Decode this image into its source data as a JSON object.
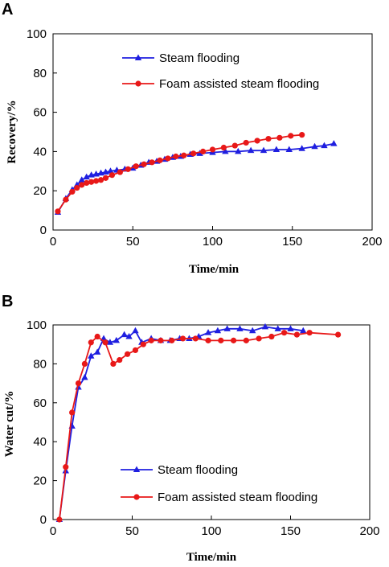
{
  "colors": {
    "steam": "#1f1fe0",
    "foam": "#e81818",
    "axis": "#000000"
  },
  "chart_data": [
    {
      "panel": "A",
      "type": "line",
      "xlabel": "Time/min",
      "ylabel": "Recovery/%",
      "xlim": [
        0,
        200
      ],
      "ylim": [
        0,
        100
      ],
      "xticks": [
        0,
        50,
        100,
        150,
        200
      ],
      "yticks": [
        0,
        20,
        40,
        60,
        80,
        100
      ],
      "legend": {
        "position": "top-center"
      },
      "series": [
        {
          "name": "Steam flooding",
          "color": "#1f1fe0",
          "marker": "triangle",
          "x": [
            3,
            8,
            12,
            15,
            18,
            21,
            24,
            27,
            30,
            33,
            36,
            40,
            45,
            50,
            55,
            60,
            65,
            70,
            75,
            80,
            86,
            92,
            100,
            108,
            116,
            124,
            132,
            140,
            148,
            156,
            164,
            170,
            176
          ],
          "y": [
            9,
            16,
            20.5,
            23,
            25.5,
            27,
            28,
            28.5,
            29,
            29.5,
            30,
            30.5,
            31,
            31.5,
            33,
            34.5,
            35,
            36,
            37,
            37.5,
            38.5,
            39,
            39.5,
            40,
            40,
            40.5,
            40.5,
            41,
            41,
            41.5,
            42.5,
            43,
            44
          ]
        },
        {
          "name": "Foam assisted steam flooding",
          "color": "#e81818",
          "marker": "circle",
          "x": [
            3,
            8,
            12,
            15,
            18,
            21,
            24,
            27,
            30,
            33,
            37,
            42,
            47,
            52,
            57,
            62,
            67,
            72,
            77,
            82,
            88,
            94,
            100,
            107,
            114,
            121,
            128,
            135,
            142,
            149,
            156
          ],
          "y": [
            9.5,
            15.5,
            19.5,
            21.5,
            23,
            24,
            24.5,
            25,
            25.5,
            26.5,
            28,
            29.5,
            31,
            32.5,
            33.5,
            34.5,
            35.5,
            36.5,
            37.5,
            38,
            39,
            40,
            41,
            42,
            43,
            44.5,
            45.5,
            46.5,
            47,
            48,
            48.5
          ]
        }
      ]
    },
    {
      "panel": "B",
      "type": "line",
      "xlabel": "Time/min",
      "ylabel": "Water cut/%",
      "xlim": [
        0,
        200
      ],
      "ylim": [
        0,
        100
      ],
      "xticks": [
        0,
        50,
        100,
        150,
        200
      ],
      "yticks": [
        0,
        20,
        40,
        60,
        80,
        100
      ],
      "legend": {
        "position": "bottom-center"
      },
      "series": [
        {
          "name": "Steam flooding",
          "color": "#1f1fe0",
          "marker": "triangle",
          "x": [
            4,
            8,
            12,
            16,
            20,
            24,
            28,
            32,
            36,
            40,
            45,
            48,
            52,
            56,
            62,
            68,
            74,
            80,
            86,
            92,
            98,
            104,
            110,
            118,
            126,
            134,
            142,
            150,
            158
          ],
          "y": [
            0,
            25,
            48,
            68,
            73,
            84,
            86,
            93,
            91,
            92,
            95,
            94,
            97,
            91,
            93,
            92,
            92,
            93,
            93,
            94,
            96,
            97,
            98,
            98,
            97,
            99,
            98,
            98,
            97
          ]
        },
        {
          "name": "Foam assisted steam flooding",
          "color": "#e81818",
          "marker": "circle",
          "x": [
            4,
            8,
            12,
            16,
            20,
            24,
            28,
            33,
            38,
            42,
            47,
            52,
            57,
            62,
            68,
            75,
            82,
            90,
            98,
            106,
            114,
            122,
            130,
            138,
            146,
            154,
            162,
            180
          ],
          "y": [
            0,
            27,
            55,
            70,
            80,
            91,
            94,
            91,
            80,
            82,
            85,
            87,
            90,
            92,
            92,
            92,
            93,
            93,
            92,
            92,
            92,
            92,
            93,
            94,
            96,
            95,
            96,
            95
          ]
        }
      ]
    }
  ]
}
